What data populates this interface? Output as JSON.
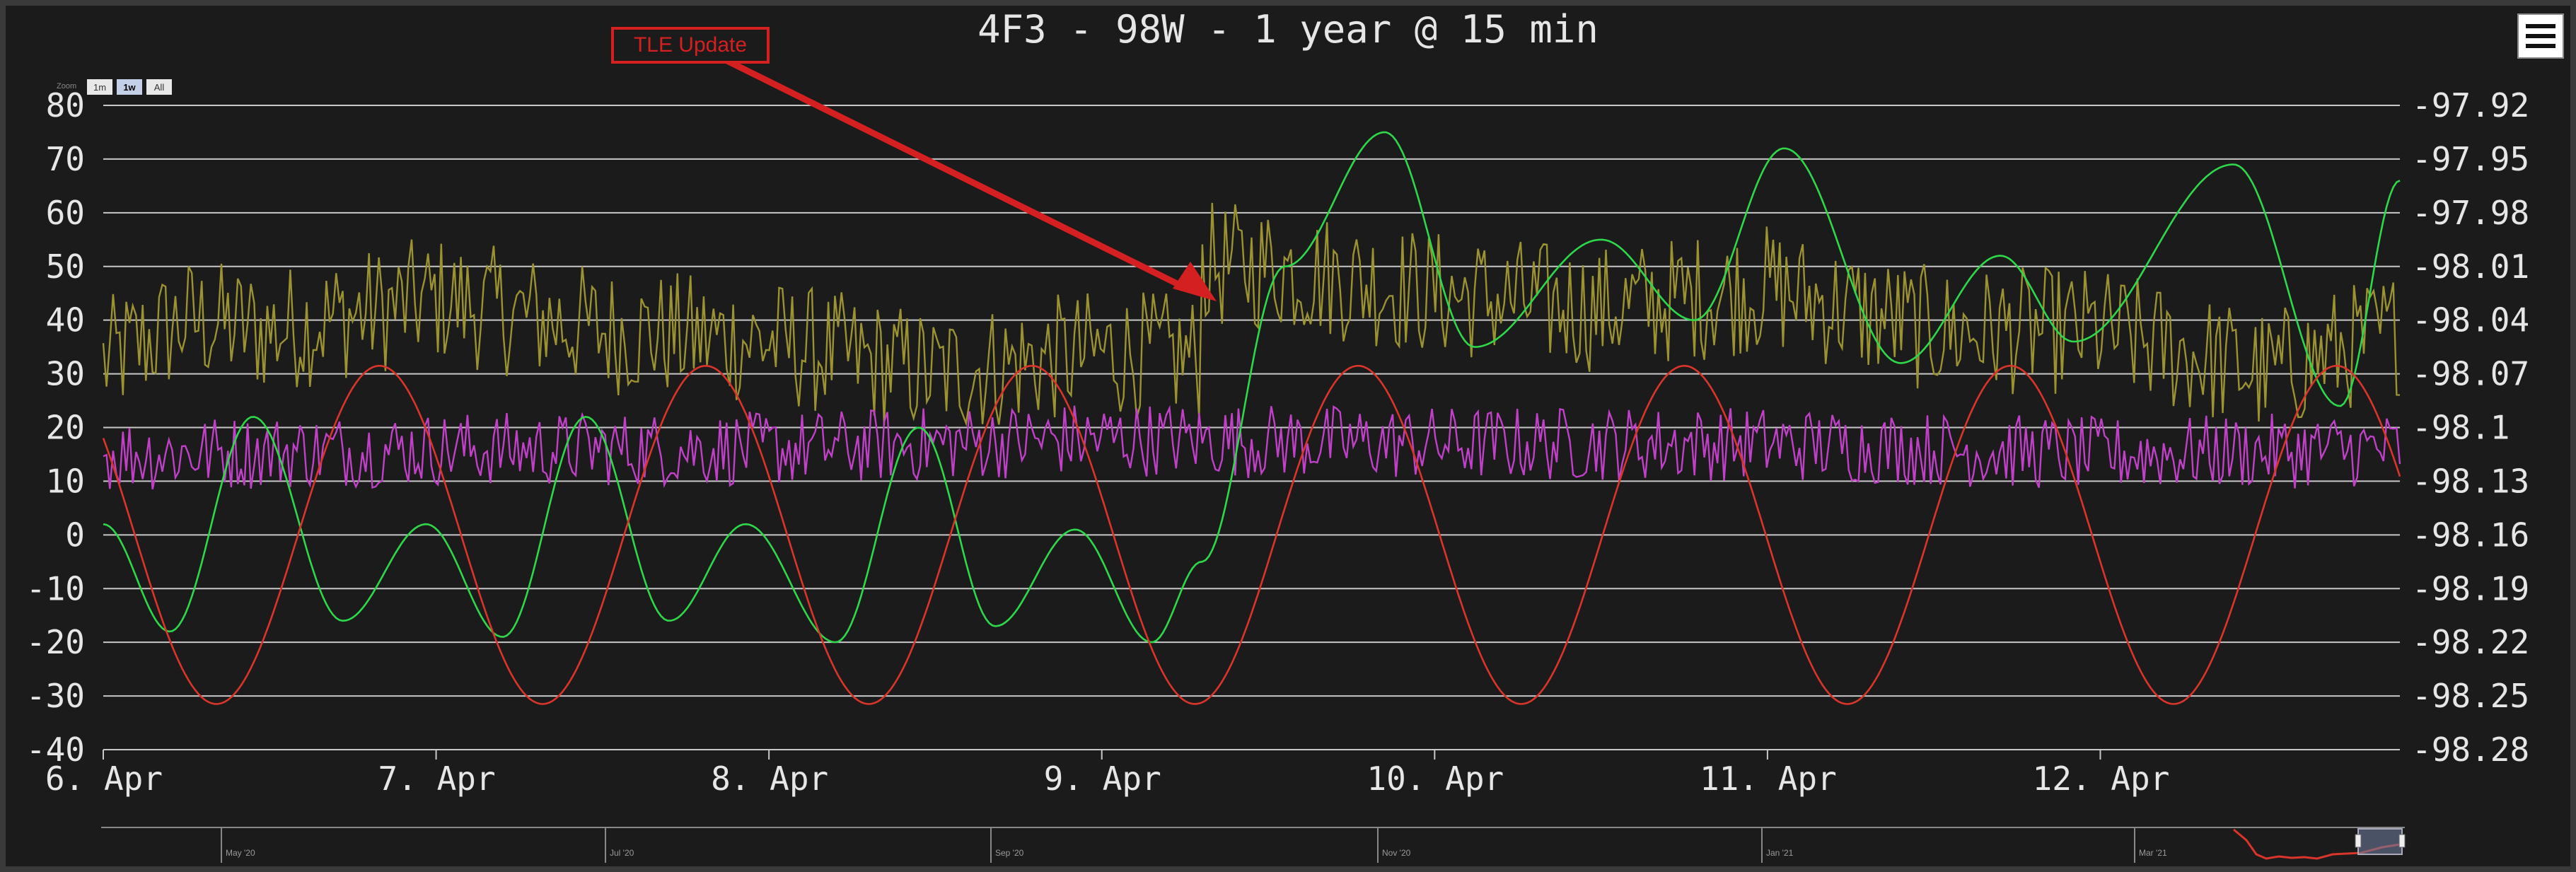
{
  "title": "4F3 - 98W - 1 year @ 15 min",
  "annotation": {
    "label": "TLE Update"
  },
  "zoom": {
    "label": "Zoom",
    "buttons": [
      "1m",
      "1w",
      "All"
    ],
    "selected": "1w"
  },
  "menu": {
    "icon": "hamburger-menu-icon"
  },
  "colors": {
    "background": "#1b1b1b",
    "grid": "#c8c8c8",
    "text": "#e6e6e6",
    "annotation": "#d42020",
    "olive": "#9b9232",
    "magenta": "#c040c8",
    "green": "#2fd84a",
    "red": "#d9352a"
  },
  "navigator": {
    "labels": [
      "May '20",
      "Jul '20",
      "Sep '20",
      "Nov '20",
      "Jan '21",
      "Mar '21"
    ]
  },
  "chart_data": {
    "type": "line",
    "x_axis": {
      "type": "datetime",
      "tick_labels": [
        "6. Apr",
        "7. Apr",
        "8. Apr",
        "9. Apr",
        "10. Apr",
        "11. Apr",
        "12. Apr"
      ],
      "range": [
        "2021-04-06T00:00",
        "2021-04-12T23:45"
      ]
    },
    "y_left": {
      "ticks": [
        80,
        70,
        60,
        50,
        40,
        30,
        20,
        10,
        0,
        -10,
        -20,
        -30,
        -40
      ],
      "range": [
        -40,
        80
      ]
    },
    "y_right": {
      "ticks": [
        "-97.92",
        "-97.95",
        "-97.98",
        "-98.01",
        "-98.04",
        "-98.07",
        "-98.1",
        "-98.13",
        "-98.16",
        "-98.19",
        "-98.22",
        "-98.25",
        "-98.28"
      ],
      "range": [
        -98.28,
        -97.92
      ]
    },
    "grid": true,
    "legend": "none",
    "series": [
      {
        "color": "#9b9232",
        "axis": "left",
        "x": [
          0,
          0.25,
          0.5,
          1,
          1.5,
          2,
          2.5,
          3,
          3.3,
          3.3,
          3.5,
          4,
          4.5,
          5,
          5.5,
          6,
          6.5,
          6.9
        ],
        "values": [
          32,
          40,
          38,
          44,
          38,
          36,
          30,
          34,
          33,
          50,
          50,
          45,
          42,
          46,
          38,
          38,
          30,
          38
        ],
        "noise_amplitude": 12
      },
      {
        "color": "#c040c8",
        "axis": "left",
        "x": [
          0,
          1,
          2,
          3,
          4,
          5,
          6,
          6.9
        ],
        "values": [
          15,
          16,
          16,
          18,
          17,
          17,
          15,
          16
        ],
        "noise_amplitude": 7
      },
      {
        "color": "#2fd84a",
        "axis": "left",
        "x": [
          0,
          0.2,
          0.45,
          0.72,
          0.97,
          1.2,
          1.45,
          1.7,
          1.93,
          2.2,
          2.45,
          2.68,
          2.92,
          3.15,
          3.3,
          3.55,
          3.85,
          4.12,
          4.5,
          4.78,
          5.05,
          5.4,
          5.7,
          5.92,
          6.4,
          6.72,
          6.9
        ],
        "values": [
          2,
          -18,
          22,
          -16,
          2,
          -19,
          22,
          -16,
          2,
          -20,
          20,
          -17,
          1,
          -20,
          -5,
          50,
          75,
          35,
          55,
          40,
          72,
          32,
          52,
          36,
          69,
          24,
          66
        ]
      },
      {
        "color": "#d9352a",
        "axis": "left",
        "period_days": 0.98,
        "phase_day": 0.83,
        "amplitude": 31.5,
        "center": 0
      }
    ]
  }
}
